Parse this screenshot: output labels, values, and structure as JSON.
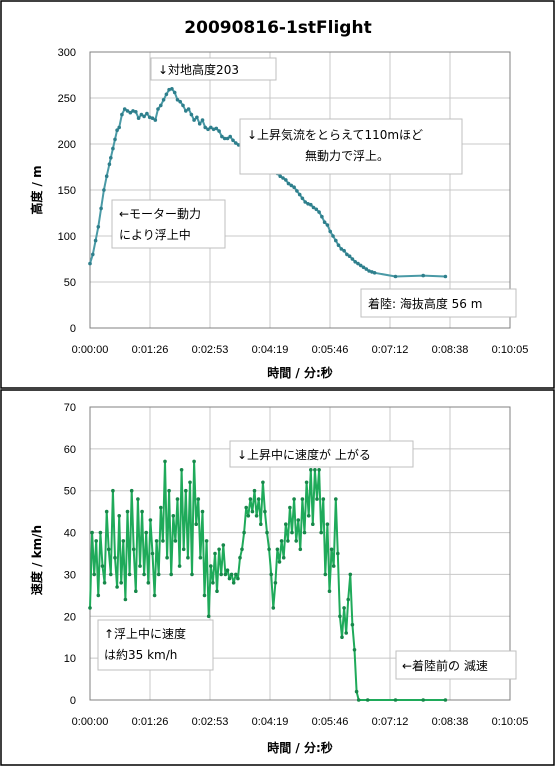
{
  "chart_data": [
    {
      "type": "line",
      "title": "20090816-1stFlight",
      "xlabel": "時間 / 分:秒",
      "ylabel": "高度 / m",
      "ylim": [
        0,
        300
      ],
      "yticks": [
        "0",
        "50",
        "100",
        "150",
        "200",
        "250",
        "300"
      ],
      "xticks": [
        "0:00:00",
        "0:01:26",
        "0:02:53",
        "0:04:19",
        "0:05:46",
        "0:07:12",
        "0:08:38",
        "0:10:05"
      ],
      "xlim_seconds": [
        0,
        605
      ],
      "grid": true,
      "color": "#4a9aa6",
      "marker_color": "#2e7f8c",
      "series": [
        {
          "points": [
            [
              0,
              70
            ],
            [
              4,
              80
            ],
            [
              8,
              95
            ],
            [
              12,
              110
            ],
            [
              16,
              130
            ],
            [
              20,
              150
            ],
            [
              24,
              165
            ],
            [
              28,
              178
            ],
            [
              30,
              185
            ],
            [
              33,
              195
            ],
            [
              36,
              205
            ],
            [
              39,
              215
            ],
            [
              42,
              218
            ],
            [
              46,
              232
            ],
            [
              50,
              238
            ],
            [
              54,
              236
            ],
            [
              58,
              234
            ],
            [
              62,
              236
            ],
            [
              66,
              235
            ],
            [
              70,
              228
            ],
            [
              74,
              232
            ],
            [
              78,
              230
            ],
            [
              82,
              233
            ],
            [
              86,
              229
            ],
            [
              90,
              228
            ],
            [
              94,
              226
            ],
            [
              98,
              238
            ],
            [
              102,
              242
            ],
            [
              106,
              248
            ],
            [
              110,
              254
            ],
            [
              114,
              259
            ],
            [
              118,
              260
            ],
            [
              122,
              256
            ],
            [
              126,
              248
            ],
            [
              130,
              246
            ],
            [
              134,
              242
            ],
            [
              138,
              236
            ],
            [
              142,
              238
            ],
            [
              146,
              232
            ],
            [
              150,
              226
            ],
            [
              154,
              229
            ],
            [
              158,
              222
            ],
            [
              162,
              226
            ],
            [
              166,
              218
            ],
            [
              170,
              216
            ],
            [
              174,
              218
            ],
            [
              178,
              216
            ],
            [
              182,
              217
            ],
            [
              186,
              214
            ],
            [
              190,
              208
            ],
            [
              194,
              206
            ],
            [
              198,
              206
            ],
            [
              202,
              208
            ],
            [
              206,
              204
            ],
            [
              210,
              201
            ],
            [
              214,
              199
            ],
            [
              218,
              200
            ],
            [
              222,
              194
            ],
            [
              226,
              190
            ],
            [
              230,
              188
            ],
            [
              234,
              192
            ],
            [
              238,
              193
            ],
            [
              242,
              190
            ],
            [
              246,
              186
            ],
            [
              250,
              183
            ],
            [
              254,
              182
            ],
            [
              258,
              178
            ],
            [
              262,
              175
            ],
            [
              266,
              171
            ],
            [
              270,
              168
            ],
            [
              274,
              165
            ],
            [
              278,
              163
            ],
            [
              282,
              161
            ],
            [
              286,
              157
            ],
            [
              290,
              155
            ],
            [
              294,
              153
            ],
            [
              298,
              149
            ],
            [
              302,
              145
            ],
            [
              306,
              141
            ],
            [
              310,
              137
            ],
            [
              314,
              135
            ],
            [
              318,
              134
            ],
            [
              322,
              131
            ],
            [
              326,
              129
            ],
            [
              330,
              126
            ],
            [
              334,
              121
            ],
            [
              338,
              115
            ],
            [
              342,
              112
            ],
            [
              346,
              105
            ],
            [
              350,
              100
            ],
            [
              354,
              95
            ],
            [
              358,
              90
            ],
            [
              362,
              86
            ],
            [
              366,
              84
            ],
            [
              370,
              80
            ],
            [
              374,
              78
            ],
            [
              378,
              75
            ],
            [
              382,
              72
            ],
            [
              386,
              70
            ],
            [
              390,
              68
            ],
            [
              394,
              66
            ],
            [
              398,
              64
            ],
            [
              402,
              62
            ],
            [
              406,
              61
            ],
            [
              410,
              60
            ],
            [
              440,
              56
            ],
            [
              480,
              57
            ],
            [
              512,
              56
            ]
          ]
        }
      ],
      "annotations": [
        {
          "lines": [
            "↓対地高度203"
          ]
        },
        {
          "lines": [
            "↓上昇気流をとらえて110mほど",
            "無動力で浮上。"
          ]
        },
        {
          "lines": [
            "←モーター動力",
            "により浮上中"
          ]
        },
        {
          "lines": [
            "着陸: 海抜高度  56 m"
          ]
        }
      ]
    },
    {
      "type": "line",
      "title": "",
      "xlabel": "時間 / 分:秒",
      "ylabel": "速度 / km/h",
      "ylim": [
        0,
        70
      ],
      "yticks": [
        "0",
        "10",
        "20",
        "30",
        "40",
        "50",
        "60",
        "70"
      ],
      "xticks": [
        "0:00:00",
        "0:01:26",
        "0:02:53",
        "0:04:19",
        "0:05:46",
        "0:07:12",
        "0:08:38",
        "0:10:05"
      ],
      "xlim_seconds": [
        0,
        605
      ],
      "grid": true,
      "color": "#1faa5a",
      "marker_color": "#17884a",
      "series": [
        {
          "points": [
            [
              0,
              22
            ],
            [
              3,
              40
            ],
            [
              6,
              30
            ],
            [
              9,
              38
            ],
            [
              12,
              25
            ],
            [
              15,
              40
            ],
            [
              18,
              32
            ],
            [
              21,
              28
            ],
            [
              24,
              45
            ],
            [
              27,
              36
            ],
            [
              30,
              30
            ],
            [
              33,
              50
            ],
            [
              36,
              34
            ],
            [
              39,
              27
            ],
            [
              42,
              44
            ],
            [
              45,
              28
            ],
            [
              48,
              38
            ],
            [
              51,
              24
            ],
            [
              54,
              45
            ],
            [
              57,
              30
            ],
            [
              60,
              50
            ],
            [
              63,
              36
            ],
            [
              66,
              26
            ],
            [
              69,
              48
            ],
            [
              72,
              32
            ],
            [
              75,
              45
            ],
            [
              78,
              30
            ],
            [
              81,
              40
            ],
            [
              84,
              28
            ],
            [
              87,
              43
            ],
            [
              90,
              35
            ],
            [
              93,
              25
            ],
            [
              96,
              38
            ],
            [
              99,
              30
            ],
            [
              102,
              46
            ],
            [
              105,
              38
            ],
            [
              108,
              57
            ],
            [
              111,
              34
            ],
            [
              114,
              50
            ],
            [
              117,
              30
            ],
            [
              120,
              44
            ],
            [
              123,
              38
            ],
            [
              126,
              48
            ],
            [
              129,
              32
            ],
            [
              132,
              55
            ],
            [
              135,
              36
            ],
            [
              138,
              50
            ],
            [
              141,
              34
            ],
            [
              144,
              52
            ],
            [
              147,
              30
            ],
            [
              150,
              57
            ],
            [
              153,
              42
            ],
            [
              156,
              48
            ],
            [
              159,
              34
            ],
            [
              162,
              45
            ],
            [
              165,
              25
            ],
            [
              168,
              38
            ],
            [
              171,
              20
            ],
            [
              174,
              32
            ],
            [
              177,
              28
            ],
            [
              180,
              35
            ],
            [
              183,
              26
            ],
            [
              186,
              36
            ],
            [
              189,
              30
            ],
            [
              192,
              37
            ],
            [
              195,
              30
            ],
            [
              198,
              31
            ],
            [
              201,
              29
            ],
            [
              204,
              30
            ],
            [
              207,
              28
            ],
            [
              210,
              30
            ],
            [
              213,
              29
            ],
            [
              216,
              34
            ],
            [
              219,
              36
            ],
            [
              222,
              40
            ],
            [
              225,
              46
            ],
            [
              228,
              44
            ],
            [
              231,
              48
            ],
            [
              234,
              45
            ],
            [
              237,
              50
            ],
            [
              240,
              44
            ],
            [
              243,
              48
            ],
            [
              246,
              42
            ],
            [
              249,
              52
            ],
            [
              252,
              45
            ],
            [
              255,
              40
            ],
            [
              258,
              36
            ],
            [
              261,
              30
            ],
            [
              264,
              22
            ],
            [
              267,
              28
            ],
            [
              270,
              36
            ],
            [
              273,
              33
            ],
            [
              276,
              38
            ],
            [
              279,
              34
            ],
            [
              282,
              42
            ],
            [
              285,
              38
            ],
            [
              288,
              46
            ],
            [
              291,
              40
            ],
            [
              294,
              48
            ],
            [
              297,
              38
            ],
            [
              300,
              43
            ],
            [
              303,
              36
            ],
            [
              306,
              48
            ],
            [
              309,
              40
            ],
            [
              312,
              52
            ],
            [
              315,
              44
            ],
            [
              318,
              55
            ],
            [
              321,
              42
            ],
            [
              324,
              55
            ],
            [
              327,
              48
            ],
            [
              330,
              55
            ],
            [
              333,
              40
            ],
            [
              336,
              48
            ],
            [
              339,
              30
            ],
            [
              342,
              42
            ],
            [
              345,
              26
            ],
            [
              348,
              36
            ],
            [
              351,
              32
            ],
            [
              354,
              48
            ],
            [
              357,
              35
            ],
            [
              360,
              20
            ],
            [
              363,
              15
            ],
            [
              366,
              22
            ],
            [
              369,
              16
            ],
            [
              372,
              24
            ],
            [
              375,
              30
            ],
            [
              378,
              18
            ],
            [
              381,
              12
            ],
            [
              384,
              2
            ],
            [
              387,
              0
            ],
            [
              400,
              0
            ],
            [
              440,
              0
            ],
            [
              480,
              0
            ],
            [
              512,
              0
            ]
          ]
        }
      ],
      "annotations": [
        {
          "lines": [
            "↓上昇中に速度が 上がる"
          ]
        },
        {
          "lines": [
            "↑浮上中に速度",
            "は約35 km/h"
          ]
        },
        {
          "lines": [
            "←着陸前の 減速"
          ]
        }
      ]
    }
  ]
}
